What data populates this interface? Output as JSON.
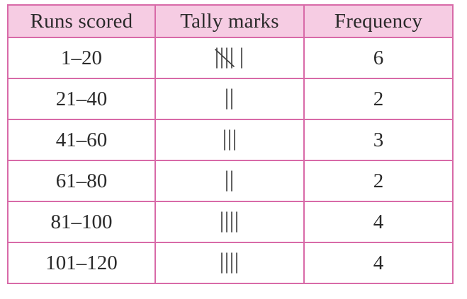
{
  "table": {
    "headers": [
      "Runs scored",
      "Tally marks",
      "Frequency"
    ],
    "rows": [
      {
        "runs": "1–20",
        "tally_count": 6,
        "frequency": "6"
      },
      {
        "runs": "21–40",
        "tally_count": 2,
        "frequency": "2"
      },
      {
        "runs": "41–60",
        "tally_count": 3,
        "frequency": "3"
      },
      {
        "runs": "61–80",
        "tally_count": 2,
        "frequency": "2"
      },
      {
        "runs": "81–100",
        "tally_count": 4,
        "frequency": "4"
      },
      {
        "runs": "101–120",
        "tally_count": 4,
        "frequency": "4"
      }
    ]
  }
}
